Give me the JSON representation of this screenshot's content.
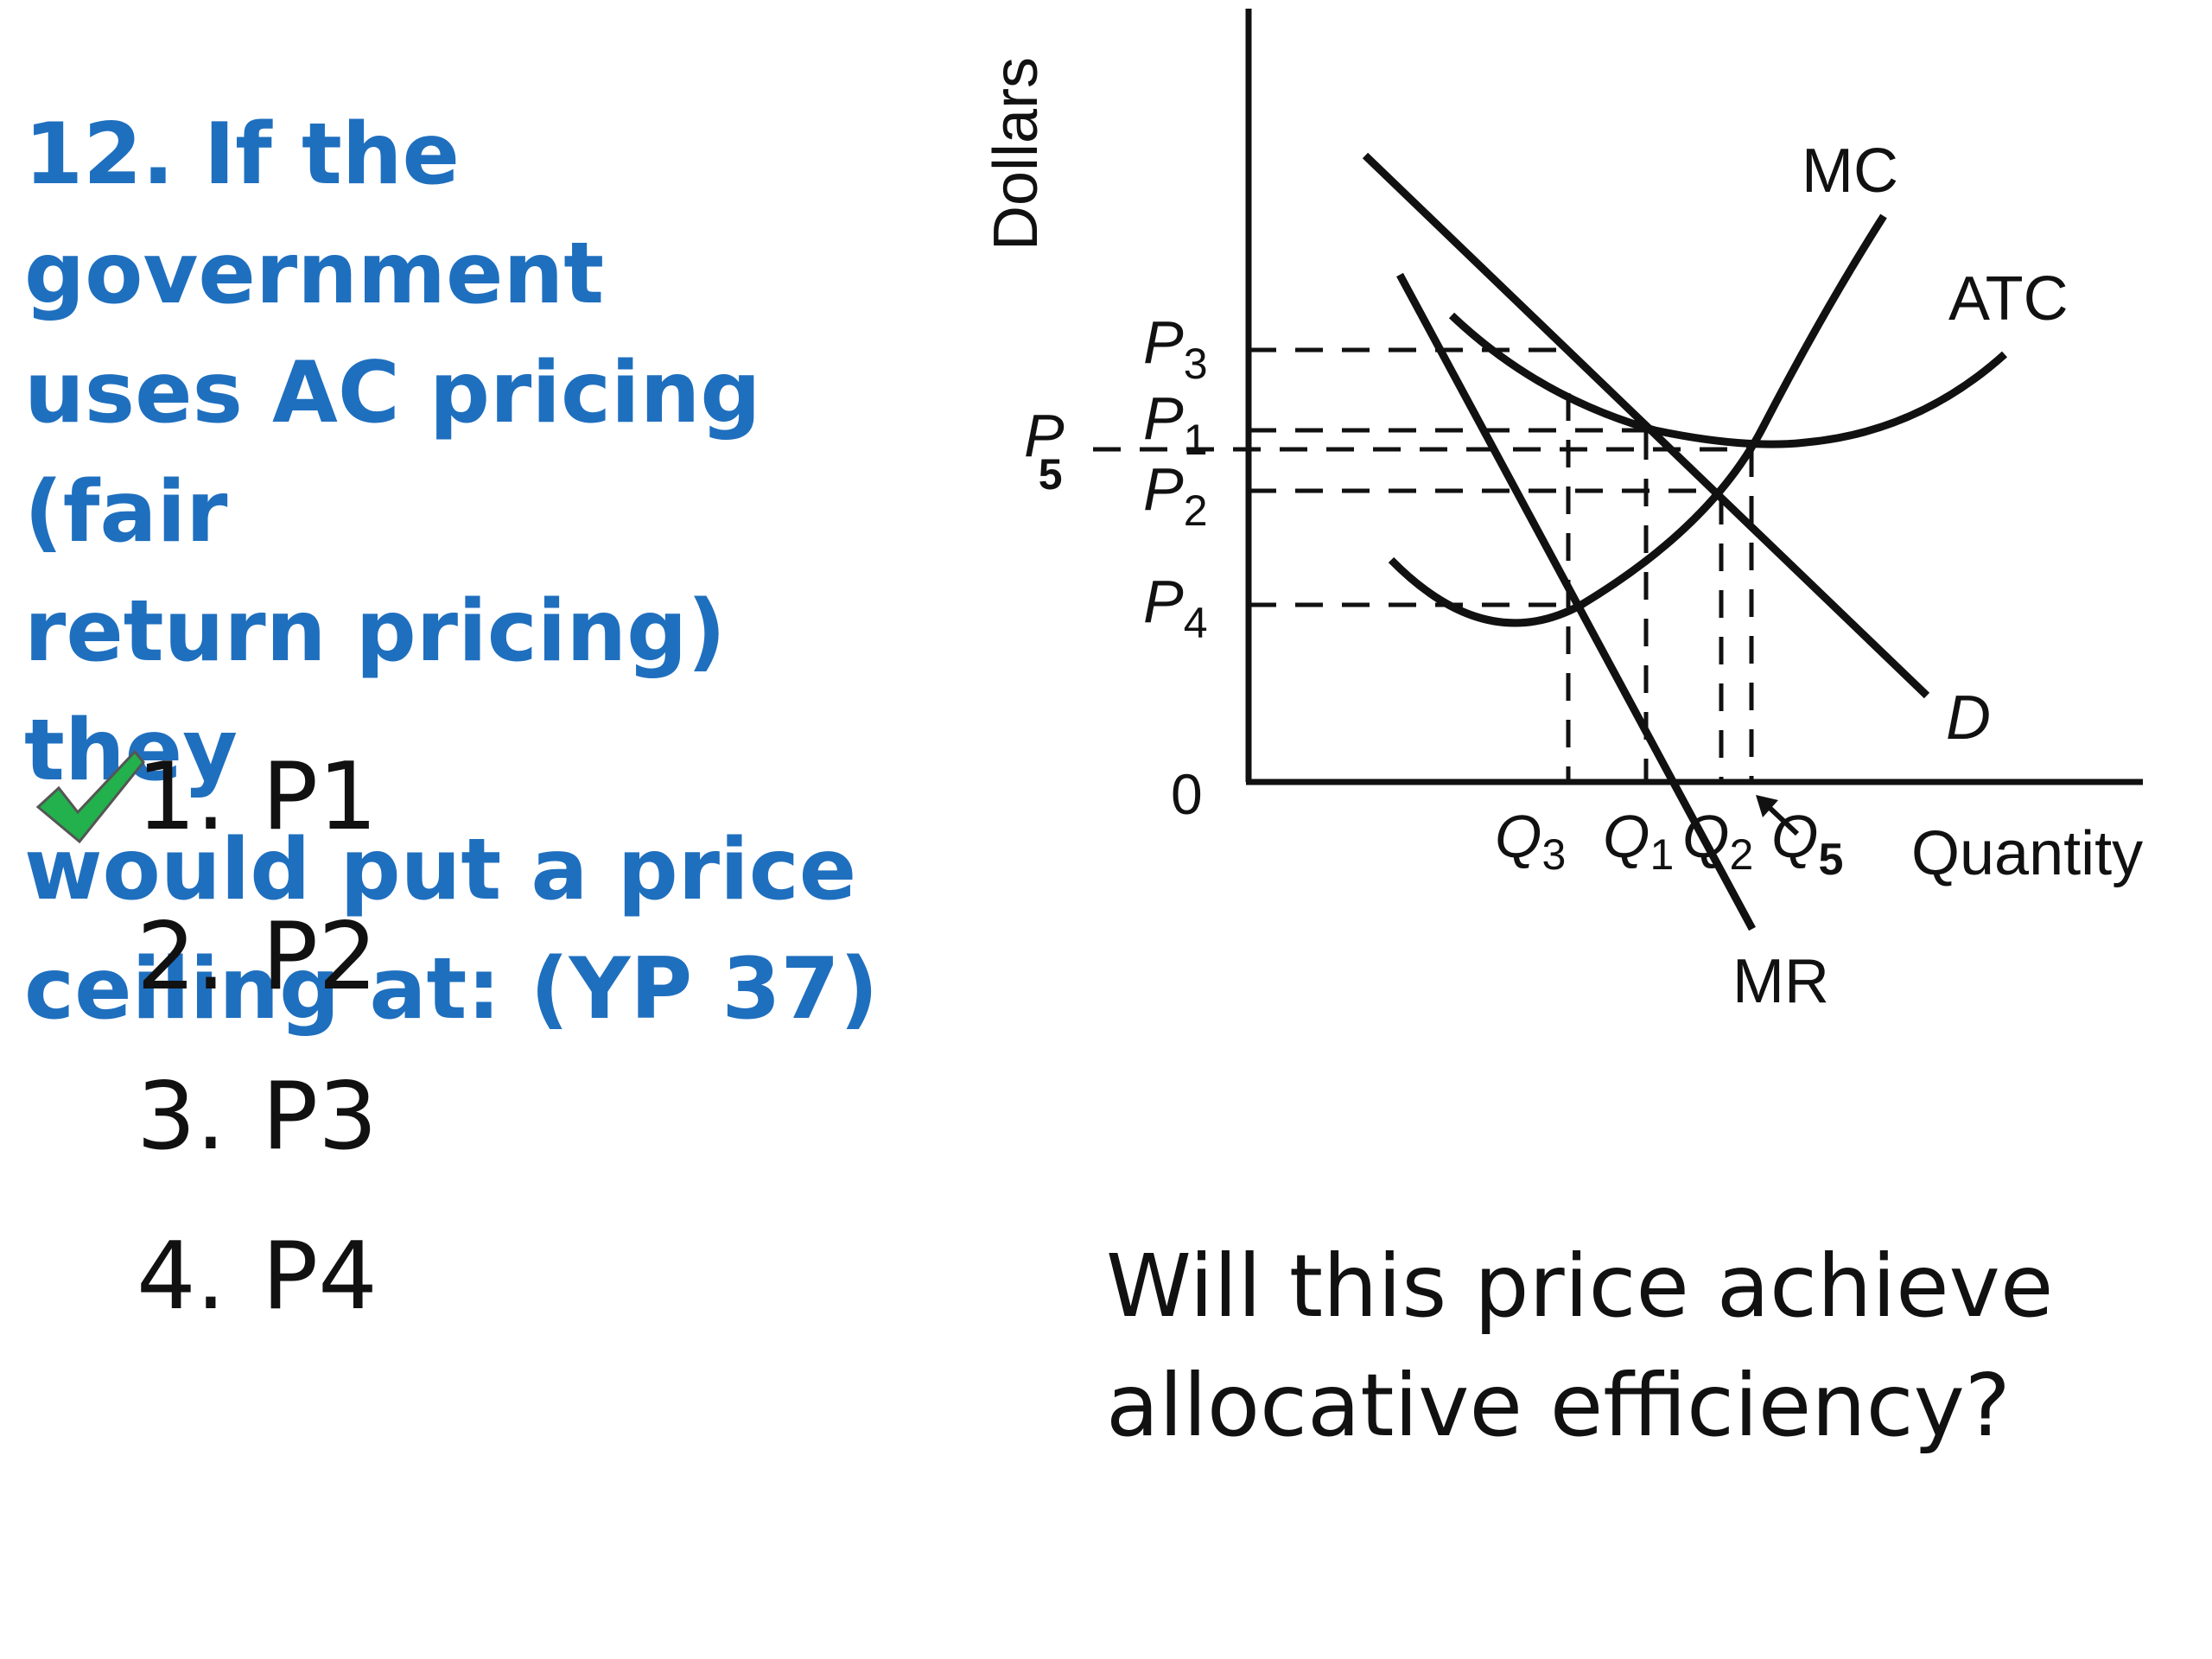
{
  "question": {
    "lines": [
      "12. If the government",
      "uses AC pricing  (fair",
      "return pricing) they",
      "would put a price",
      "ceiling at: (YP 37)"
    ]
  },
  "options": [
    {
      "num": "1.",
      "label": "P1",
      "correct": true
    },
    {
      "num": "2.",
      "label": "P2",
      "correct": false
    },
    {
      "num": "3.",
      "label": "P3",
      "correct": false
    },
    {
      "num": "4.",
      "label": "P4",
      "correct": false
    }
  ],
  "diagram": {
    "y_axis_label": "Dollars",
    "x_axis_label": "Quantity",
    "origin_label": "0",
    "curves": {
      "mc": "MC",
      "atc": "ATC",
      "demand": "D",
      "mr": "MR"
    },
    "price_labels": [
      {
        "base": "P",
        "sub": "3"
      },
      {
        "base": "P",
        "sub": "1"
      },
      {
        "base": "P",
        "sub": "5"
      },
      {
        "base": "P",
        "sub": "2"
      },
      {
        "base": "P",
        "sub": "4"
      }
    ],
    "quantity_labels": [
      {
        "base": "Q",
        "sub": "3"
      },
      {
        "base": "Q",
        "sub": "1"
      },
      {
        "base": "Q",
        "sub": "2"
      },
      {
        "base": "Q",
        "sub": "5"
      }
    ]
  },
  "followup": {
    "lines": [
      "Will this price achieve",
      "allocative efficiency?"
    ]
  },
  "colors": {
    "question": "#1f6fbf",
    "check": "#22b14c",
    "ink": "#111111"
  }
}
